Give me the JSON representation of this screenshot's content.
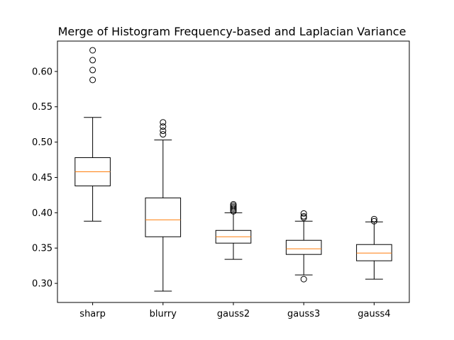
{
  "chart_data": {
    "type": "box",
    "title": "Merge of Histogram Frequency-based and Laplacian Variance",
    "xlabel": "",
    "ylabel": "",
    "ylim": [
      0.273,
      0.643
    ],
    "yticks": [
      0.3,
      0.35,
      0.4,
      0.45,
      0.5,
      0.55,
      0.6
    ],
    "ytick_labels": [
      "0.30",
      "0.35",
      "0.40",
      "0.45",
      "0.50",
      "0.55",
      "0.60"
    ],
    "categories": [
      "sharp",
      "blurry",
      "gauss2",
      "gauss3",
      "gauss4"
    ],
    "grid": false,
    "colors": {
      "box": "#000000",
      "median": "#ff7f0e",
      "axes": "#000000"
    },
    "boxes": [
      {
        "label": "sharp",
        "whislo": 0.388,
        "q1": 0.438,
        "med": 0.458,
        "q3": 0.478,
        "whishi": 0.535,
        "fliers": [
          0.588,
          0.602,
          0.616,
          0.63
        ]
      },
      {
        "label": "blurry",
        "whislo": 0.289,
        "q1": 0.366,
        "med": 0.39,
        "q3": 0.421,
        "whishi": 0.503,
        "fliers": [
          0.511,
          0.516,
          0.522,
          0.528
        ]
      },
      {
        "label": "gauss2",
        "whislo": 0.334,
        "q1": 0.357,
        "med": 0.366,
        "q3": 0.375,
        "whishi": 0.4,
        "fliers": [
          0.402,
          0.404,
          0.406,
          0.408,
          0.41,
          0.412
        ]
      },
      {
        "label": "gauss3",
        "whislo": 0.312,
        "q1": 0.341,
        "med": 0.349,
        "q3": 0.361,
        "whishi": 0.388,
        "fliers": [
          0.306,
          0.393,
          0.395,
          0.399
        ]
      },
      {
        "label": "gauss4",
        "whislo": 0.306,
        "q1": 0.332,
        "med": 0.343,
        "q3": 0.355,
        "whishi": 0.387,
        "fliers": [
          0.388,
          0.391
        ]
      }
    ]
  }
}
